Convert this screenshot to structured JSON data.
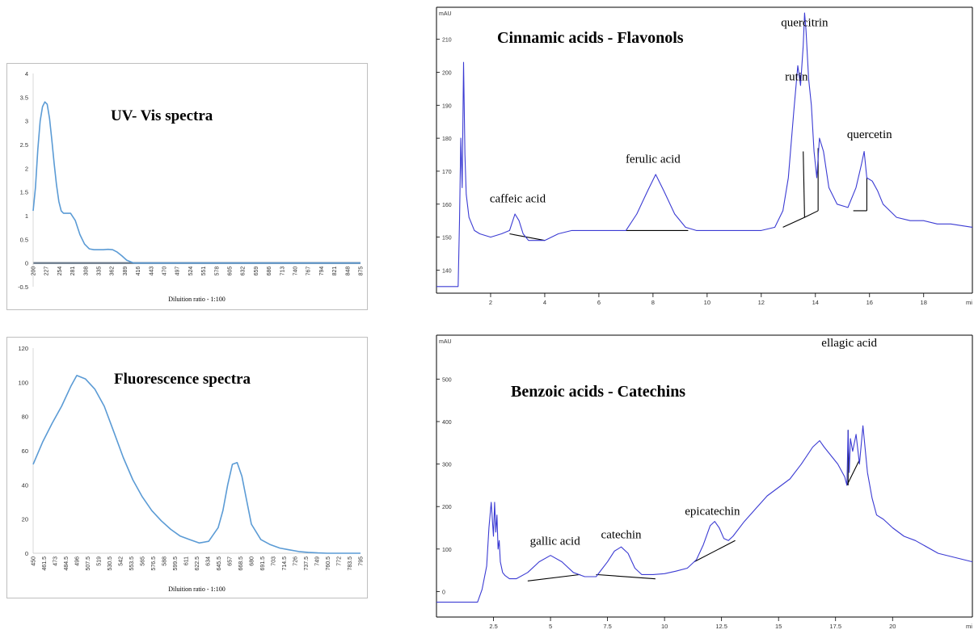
{
  "chart_data": [
    {
      "type": "line",
      "title": "UV- Vis spectra",
      "xlabel": "Diluition ratio - 1:100",
      "ylabel": "",
      "ylim": [
        -0.5,
        4
      ],
      "yticks": [
        "4",
        "3.5",
        "3",
        "2.5",
        "2",
        "1.5",
        "1",
        "0.5",
        "0",
        "-0.5"
      ],
      "xticks": [
        "200",
        "227",
        "254",
        "281",
        "308",
        "335",
        "362",
        "389",
        "416",
        "443",
        "470",
        "497",
        "524",
        "551",
        "578",
        "605",
        "632",
        "659",
        "686",
        "713",
        "740",
        "767",
        "794",
        "821",
        "848",
        "875"
      ],
      "x": [
        200,
        205,
        210,
        215,
        220,
        225,
        230,
        235,
        240,
        245,
        250,
        255,
        260,
        265,
        270,
        280,
        290,
        300,
        310,
        320,
        330,
        340,
        350,
        360,
        370,
        380,
        390,
        400,
        410,
        416,
        430,
        500,
        600,
        700,
        800,
        900
      ],
      "series": [
        {
          "color": "#5b9bd5",
          "values": [
            1.1,
            1.6,
            2.4,
            3.0,
            3.3,
            3.4,
            3.35,
            3.05,
            2.6,
            2.1,
            1.65,
            1.3,
            1.1,
            1.05,
            1.05,
            1.05,
            0.9,
            0.6,
            0.4,
            0.3,
            0.28,
            0.28,
            0.28,
            0.29,
            0.28,
            0.23,
            0.15,
            0.06,
            0.02,
            0.0,
            0.0,
            0.0,
            0.0,
            0.0,
            0.0,
            0.0
          ]
        }
      ]
    },
    {
      "type": "line",
      "title": "Fluorescence spectra",
      "xlabel": "Diluition ratio - 1:100",
      "ylabel": "",
      "ylim": [
        0,
        120
      ],
      "yticks": [
        "120",
        "100",
        "80",
        "60",
        "40",
        "20",
        "0"
      ],
      "xticks": [
        "450",
        "461.5",
        "473",
        "484.5",
        "496",
        "507.5",
        "519",
        "530.5",
        "542",
        "553.5",
        "565",
        "576.5",
        "588",
        "599.5",
        "611",
        "622.5",
        "634",
        "645.5",
        "657",
        "668.5",
        "680",
        "691.5",
        "703",
        "714.5",
        "726",
        "737.5",
        "749",
        "760.5",
        "772",
        "783.5",
        "795"
      ],
      "x": [
        450,
        460,
        470,
        480,
        490,
        496,
        505,
        515,
        525,
        535,
        545,
        555,
        565,
        575,
        585,
        595,
        605,
        615,
        625,
        635,
        645,
        650,
        655,
        660,
        665,
        670,
        675,
        680,
        690,
        700,
        710,
        720,
        730,
        740,
        750,
        760,
        770,
        780,
        795
      ],
      "series": [
        {
          "color": "#5b9bd5",
          "values": [
            52,
            65,
            76,
            86,
            98,
            104,
            102,
            96,
            86,
            71,
            56,
            43,
            33,
            25,
            19,
            14,
            10,
            8,
            6,
            7,
            15,
            25,
            40,
            52,
            53,
            45,
            31,
            17,
            8,
            5,
            3,
            2,
            1,
            0.5,
            0.2,
            0,
            0,
            0,
            0
          ]
        }
      ]
    },
    {
      "type": "line",
      "title": "Cinnamic acids - Flavonols",
      "unit_label": "mAU",
      "xunit": "mi",
      "ylim": [
        133,
        218
      ],
      "yticks": [
        "210",
        "200",
        "190",
        "180",
        "170",
        "160",
        "150",
        "140"
      ],
      "xticks": [
        "2",
        "4",
        "6",
        "8",
        "10",
        "12",
        "14",
        "16",
        "18"
      ],
      "x": [
        0.0,
        0.8,
        0.85,
        0.9,
        0.95,
        1.0,
        1.05,
        1.1,
        1.2,
        1.4,
        1.6,
        2.0,
        2.4,
        2.7,
        2.9,
        3.05,
        3.2,
        3.4,
        3.7,
        4.0,
        4.5,
        5.0,
        6.0,
        7.0,
        7.4,
        7.8,
        8.1,
        8.4,
        8.8,
        9.2,
        9.6,
        10.0,
        11.0,
        12.0,
        12.5,
        12.8,
        13.0,
        13.2,
        13.35,
        13.45,
        13.55,
        13.6,
        13.65,
        13.75,
        13.85,
        13.95,
        14.05,
        14.15,
        14.3,
        14.5,
        14.8,
        15.2,
        15.5,
        15.7,
        15.8,
        15.9,
        16.1,
        16.3,
        16.5,
        17.0,
        17.5,
        18.0,
        18.5,
        19.0,
        19.8
      ],
      "series": [
        {
          "color": "#3b3bd3",
          "values": [
            135,
            135,
            155,
            180,
            165,
            203,
            175,
            163,
            156,
            152,
            151,
            150,
            151,
            152,
            157,
            155,
            151,
            149,
            149,
            149,
            151,
            152,
            152,
            152,
            157,
            164,
            169,
            164,
            157,
            153,
            152,
            152,
            152,
            152,
            153,
            158,
            168,
            188,
            202,
            196,
            208,
            218,
            213,
            198,
            190,
            176,
            168,
            180,
            176,
            165,
            160,
            159,
            165,
            172,
            176,
            168,
            167,
            164,
            160,
            156,
            155,
            155,
            154,
            154,
            153
          ]
        }
      ],
      "peak_labels": [
        "caffeic acid",
        "ferulic acid",
        "rutin",
        "quercitrin",
        "quercetin"
      ]
    },
    {
      "type": "line",
      "title": "Benzoic acids - Catechins",
      "unit_label": "mAU",
      "xunit": "mi",
      "ylim": [
        -60,
        590
      ],
      "yticks": [
        "500",
        "400",
        "300",
        "200",
        "100",
        "0"
      ],
      "xticks": [
        "2.5",
        "5",
        "7.5",
        "10",
        "12.5",
        "15",
        "17.5",
        "20"
      ],
      "x": [
        0.0,
        1.8,
        2.0,
        2.2,
        2.3,
        2.4,
        2.5,
        2.55,
        2.6,
        2.65,
        2.7,
        2.75,
        2.8,
        2.9,
        3.0,
        3.2,
        3.5,
        4.0,
        4.5,
        5.0,
        5.5,
        6.0,
        6.5,
        7.0,
        7.5,
        7.8,
        8.1,
        8.4,
        8.7,
        9.0,
        9.5,
        10.0,
        10.5,
        11.0,
        11.4,
        11.7,
        12.0,
        12.2,
        12.4,
        12.6,
        12.8,
        13.0,
        13.5,
        14.0,
        14.5,
        15.0,
        15.5,
        16.0,
        16.5,
        16.8,
        17.0,
        17.3,
        17.6,
        17.9,
        18.0,
        18.05,
        18.1,
        18.15,
        18.25,
        18.4,
        18.55,
        18.7,
        18.9,
        19.1,
        19.3,
        19.6,
        20.0,
        20.5,
        21.0,
        22.0,
        23.5
      ],
      "series": [
        {
          "color": "#3b3bd3",
          "values": [
            -25,
            -25,
            5,
            60,
            150,
            210,
            130,
            210,
            140,
            180,
            100,
            120,
            70,
            45,
            38,
            30,
            30,
            45,
            70,
            85,
            70,
            45,
            35,
            35,
            70,
            95,
            105,
            90,
            55,
            40,
            40,
            42,
            48,
            55,
            75,
            110,
            155,
            165,
            150,
            125,
            120,
            130,
            165,
            195,
            225,
            245,
            265,
            300,
            340,
            355,
            340,
            320,
            300,
            270,
            250,
            380,
            280,
            360,
            330,
            370,
            300,
            390,
            280,
            220,
            180,
            170,
            150,
            130,
            120,
            90,
            70
          ]
        }
      ],
      "peak_labels": [
        "gallic acid",
        "catechin",
        "epicatechin",
        "ellagic acid"
      ]
    }
  ]
}
